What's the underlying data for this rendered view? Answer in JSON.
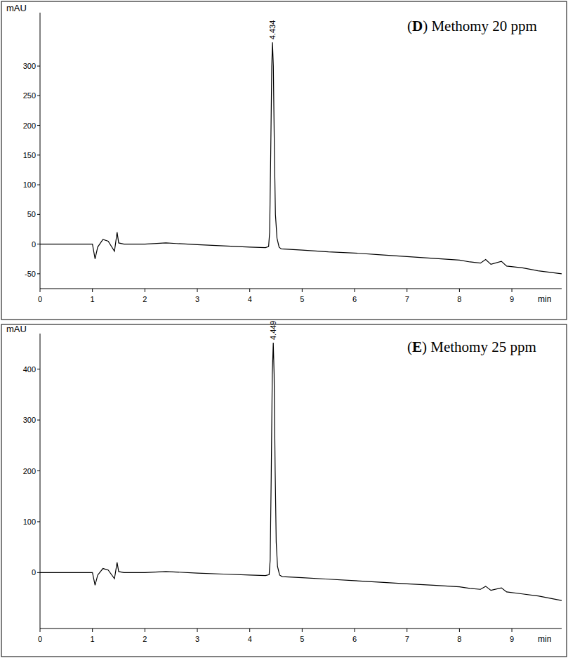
{
  "chart_data": [
    {
      "type": "line",
      "title": "(D) Methomy 20 ppm",
      "y_label": "mAU",
      "x_label": "min",
      "xlim": [
        0,
        9.95
      ],
      "xticks": [
        0,
        1,
        2,
        3,
        4,
        5,
        6,
        7,
        8,
        9
      ],
      "ylim": [
        -75,
        390
      ],
      "yticks": [
        -50,
        0,
        50,
        100,
        150,
        200,
        250,
        300
      ],
      "x": [
        0,
        1.0,
        1.05,
        1.1,
        1.2,
        1.3,
        1.42,
        1.47,
        1.5,
        1.6,
        2.0,
        2.4,
        2.6,
        3.0,
        3.5,
        4.0,
        4.3,
        4.36,
        4.38,
        4.4,
        4.42,
        4.434,
        4.45,
        4.47,
        4.49,
        4.52,
        4.56,
        4.6,
        5.0,
        5.5,
        6.0,
        6.5,
        7.0,
        7.5,
        8.0,
        8.2,
        8.4,
        8.5,
        8.6,
        8.8,
        8.9,
        9.2,
        9.5,
        9.95
      ],
      "series": [
        {
          "color": "#000000",
          "values": [
            0,
            0,
            -25,
            -5,
            8,
            5,
            -12,
            20,
            2,
            0,
            0,
            2,
            1,
            -1,
            -3,
            -5,
            -6,
            -4,
            20,
            150,
            300,
            340,
            300,
            160,
            50,
            10,
            -5,
            -8,
            -10,
            -13,
            -15,
            -18,
            -21,
            -24,
            -27,
            -30,
            -32,
            -26,
            -34,
            -29,
            -37,
            -40,
            -45,
            -50
          ]
        }
      ],
      "annotations": [
        {
          "text": "4.434",
          "x": 4.434,
          "y": 340
        }
      ]
    },
    {
      "type": "line",
      "title": "(E) Methomy 25 ppm",
      "y_label": "mAU",
      "x_label": "min",
      "xlim": [
        0,
        9.95
      ],
      "xticks": [
        0,
        1,
        2,
        3,
        4,
        5,
        6,
        7,
        8,
        9
      ],
      "ylim": [
        -110,
        470
      ],
      "yticks": [
        0,
        100,
        200,
        300,
        400
      ],
      "x": [
        0,
        1.0,
        1.05,
        1.1,
        1.2,
        1.3,
        1.42,
        1.47,
        1.5,
        1.6,
        2.0,
        2.4,
        2.6,
        3.0,
        3.5,
        4.0,
        4.3,
        4.37,
        4.39,
        4.41,
        4.43,
        4.449,
        4.465,
        4.485,
        4.505,
        4.53,
        4.57,
        4.62,
        5.0,
        5.5,
        6.0,
        6.5,
        7.0,
        7.5,
        8.0,
        8.2,
        8.4,
        8.5,
        8.6,
        8.8,
        8.9,
        9.2,
        9.5,
        9.95
      ],
      "series": [
        {
          "color": "#000000",
          "values": [
            0,
            0,
            -25,
            -5,
            8,
            5,
            -12,
            20,
            2,
            0,
            0,
            2,
            1,
            -1,
            -3,
            -5,
            -6,
            -4,
            25,
            190,
            390,
            452,
            390,
            200,
            60,
            12,
            -5,
            -8,
            -10,
            -13,
            -16,
            -19,
            -22,
            -25,
            -28,
            -31,
            -33,
            -27,
            -35,
            -30,
            -38,
            -42,
            -46,
            -55
          ]
        }
      ],
      "annotations": [
        {
          "text": "4.449",
          "x": 4.449,
          "y": 452
        }
      ]
    }
  ]
}
